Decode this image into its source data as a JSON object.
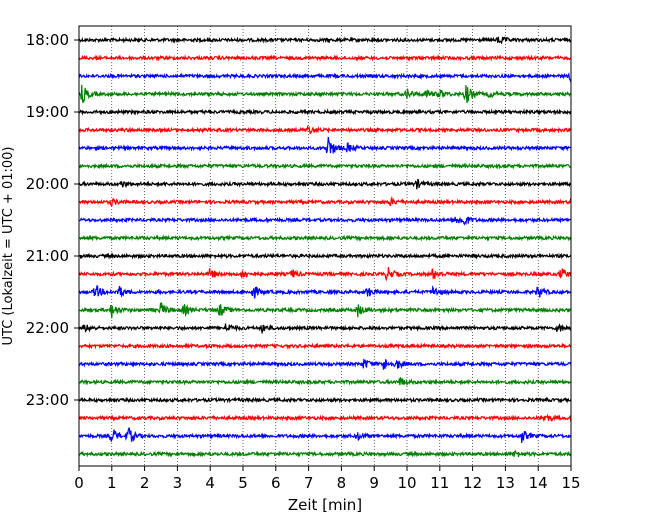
{
  "chart_data": {
    "type": "line",
    "subtype": "helicorder seismogram",
    "xlabel": "Zeit  [min]",
    "ylabel": "UTC (Lokalzeit = UTC + 01:00)",
    "xlim": [
      0,
      15
    ],
    "x_ticks": [
      "0",
      "1",
      "2",
      "3",
      "4",
      "5",
      "6",
      "7",
      "8",
      "9",
      "10",
      "11",
      "12",
      "13",
      "14",
      "15"
    ],
    "y_tick_labels": [
      "18:00",
      "19:00",
      "20:00",
      "21:00",
      "22:00",
      "23:00"
    ],
    "vertical_grid": "dotted, every minute",
    "trace_interval_minutes": 15,
    "color_cycle": [
      "#000000",
      "#ff0000",
      "#0000ff",
      "#008000"
    ],
    "traces": [
      {
        "start": "18:00",
        "color": "#000000",
        "events": [
          [
            12.8,
            4
          ]
        ]
      },
      {
        "start": "18:15",
        "color": "#ff0000",
        "events": []
      },
      {
        "start": "18:30",
        "color": "#0000ff",
        "events": [
          [
            15.0,
            5
          ]
        ]
      },
      {
        "start": "18:45",
        "color": "#008000",
        "events": [
          [
            0.1,
            9
          ],
          [
            10.0,
            5
          ],
          [
            10.6,
            4
          ],
          [
            11.0,
            4
          ],
          [
            11.8,
            10
          ],
          [
            12.5,
            3
          ]
        ]
      },
      {
        "start": "19:00",
        "color": "#000000",
        "events": []
      },
      {
        "start": "19:15",
        "color": "#ff0000",
        "events": [
          [
            7.0,
            4
          ]
        ]
      },
      {
        "start": "19:30",
        "color": "#0000ff",
        "events": [
          [
            7.6,
            12
          ],
          [
            8.2,
            4
          ]
        ]
      },
      {
        "start": "19:45",
        "color": "#008000",
        "events": []
      },
      {
        "start": "20:00",
        "color": "#000000",
        "events": [
          [
            1.3,
            3
          ],
          [
            10.3,
            4
          ]
        ]
      },
      {
        "start": "20:15",
        "color": "#ff0000",
        "events": [
          [
            1.0,
            3
          ],
          [
            9.5,
            3
          ],
          [
            15.0,
            3
          ]
        ]
      },
      {
        "start": "20:30",
        "color": "#0000ff",
        "events": [
          [
            11.5,
            4
          ],
          [
            11.7,
            6
          ]
        ]
      },
      {
        "start": "20:45",
        "color": "#008000",
        "events": []
      },
      {
        "start": "21:00",
        "color": "#000000",
        "events": []
      },
      {
        "start": "21:15",
        "color": "#ff0000",
        "events": [
          [
            4.0,
            5
          ],
          [
            5.0,
            5
          ],
          [
            6.5,
            4
          ],
          [
            9.4,
            7
          ],
          [
            10.8,
            5
          ],
          [
            14.7,
            6
          ]
        ]
      },
      {
        "start": "21:30",
        "color": "#0000ff",
        "events": [
          [
            0.5,
            7
          ],
          [
            1.2,
            6
          ],
          [
            5.3,
            7
          ],
          [
            8.8,
            5
          ],
          [
            10.8,
            5
          ],
          [
            14.0,
            6
          ]
        ]
      },
      {
        "start": "21:45",
        "color": "#008000",
        "events": [
          [
            1.0,
            7
          ],
          [
            2.5,
            7
          ],
          [
            3.2,
            5
          ],
          [
            4.3,
            6
          ],
          [
            8.5,
            6
          ]
        ]
      },
      {
        "start": "22:00",
        "color": "#000000",
        "events": [
          [
            0.2,
            3
          ],
          [
            4.5,
            5
          ],
          [
            5.6,
            4
          ],
          [
            14.6,
            4
          ]
        ]
      },
      {
        "start": "22:15",
        "color": "#ff0000",
        "events": []
      },
      {
        "start": "22:30",
        "color": "#0000ff",
        "events": [
          [
            8.7,
            5
          ],
          [
            9.3,
            6
          ],
          [
            9.7,
            4
          ]
        ]
      },
      {
        "start": "22:45",
        "color": "#008000",
        "events": [
          [
            9.8,
            4
          ]
        ]
      },
      {
        "start": "23:00",
        "color": "#000000",
        "events": []
      },
      {
        "start": "23:15",
        "color": "#ff0000",
        "events": [
          [
            14.2,
            4
          ]
        ]
      },
      {
        "start": "23:30",
        "color": "#0000ff",
        "events": [
          [
            1.0,
            8
          ],
          [
            1.5,
            9
          ],
          [
            8.5,
            4
          ],
          [
            13.5,
            6
          ]
        ]
      },
      {
        "start": "23:45",
        "color": "#008000",
        "events": [
          [
            13.3,
            3
          ]
        ]
      }
    ]
  }
}
